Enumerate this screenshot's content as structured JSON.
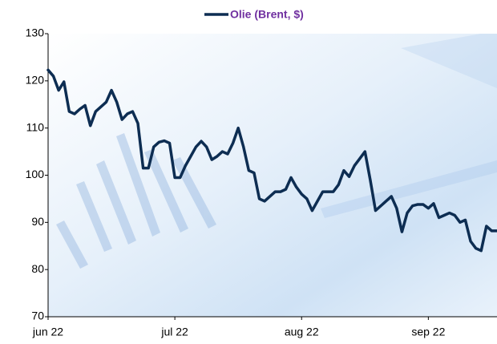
{
  "chart_data": {
    "type": "line",
    "categories": [
      "jun 22",
      null,
      null,
      null,
      null,
      null,
      null,
      null,
      null,
      null,
      null,
      null,
      null,
      null,
      null,
      null,
      null,
      null,
      null,
      null,
      null,
      null,
      null,
      null,
      "jul 22",
      null,
      null,
      null,
      null,
      null,
      null,
      null,
      null,
      null,
      null,
      null,
      null,
      null,
      null,
      null,
      null,
      null,
      null,
      null,
      null,
      null,
      null,
      null,
      "aug 22",
      null,
      null,
      null,
      null,
      null,
      null,
      null,
      null,
      null,
      null,
      null,
      null,
      null,
      null,
      null,
      null,
      null,
      null,
      null,
      null,
      null,
      null,
      null,
      "sep 22",
      null,
      null,
      null,
      null,
      null,
      null,
      null,
      null,
      null,
      null,
      null,
      null,
      null
    ],
    "series": [
      {
        "name": "Olie (Brent, $)",
        "color": "#0d2d52",
        "values": [
          122.3,
          121,
          118,
          119.8,
          113.5,
          113,
          114,
          114.8,
          110.5,
          113.5,
          114.5,
          115.5,
          118,
          115.5,
          111.8,
          113,
          113.5,
          111,
          101.5,
          101.5,
          106,
          107,
          107.3,
          106.8,
          99.5,
          99.5,
          102,
          104,
          106,
          107.2,
          106,
          103.3,
          104,
          105,
          104.5,
          106.8,
          110,
          106,
          101,
          100.5,
          95,
          94.5,
          95.5,
          96.5,
          96.5,
          97,
          99.5,
          97.5,
          96,
          95,
          92.5,
          94.5,
          96.5,
          96.5,
          96.5,
          98,
          101,
          99.7,
          102,
          103.5,
          105,
          99,
          92.5,
          93.5,
          94.5,
          95.5,
          93,
          88,
          92,
          93.5,
          93.8,
          93.8,
          93,
          94,
          91,
          91.5,
          92,
          91.5,
          90,
          90.5,
          86,
          84.5,
          84,
          89.2,
          88.2,
          88.2
        ]
      }
    ],
    "ylim": [
      70,
      130
    ],
    "yticks": [
      70,
      80,
      90,
      100,
      110,
      120,
      130
    ],
    "grid": false,
    "legend": "top",
    "legend_text_color": "#7030a0"
  }
}
